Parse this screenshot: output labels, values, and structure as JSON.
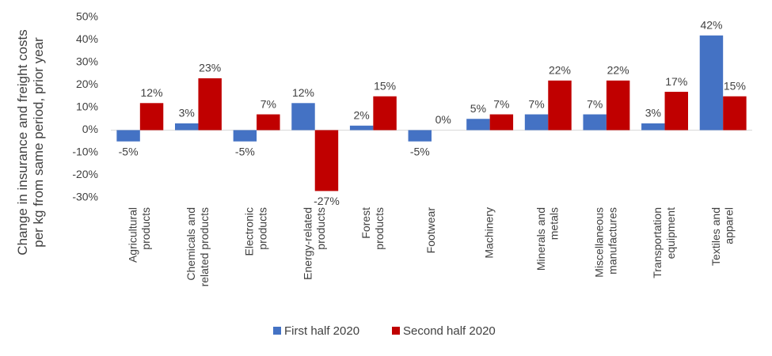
{
  "chart_data": {
    "type": "bar",
    "y_label": [
      "Change in insurance and freight costs",
      "per kg from same period, prior year"
    ],
    "categories": [
      [
        "Agricultural",
        "products"
      ],
      [
        "Chemicals and",
        "related products"
      ],
      [
        "Electronic",
        "products"
      ],
      [
        "Energy-related",
        "products"
      ],
      [
        "Forest",
        "products"
      ],
      [
        "Footwear"
      ],
      [
        "Machinery"
      ],
      [
        "Minerals and",
        "metals"
      ],
      [
        "Miscellaneous",
        "manufactures"
      ],
      [
        "Transportation",
        "equipment"
      ],
      [
        "Textiles and",
        "apparel"
      ]
    ],
    "series": [
      {
        "name": "First half 2020",
        "color": "#4472c4",
        "values": [
          -5,
          3,
          -5,
          12,
          2,
          -5,
          5,
          7,
          7,
          3,
          42
        ],
        "value_labels": [
          "-5%",
          "3%",
          "-5%",
          "12%",
          "2%",
          "-5%",
          "5%",
          "7%",
          "7%",
          "3%",
          "42%"
        ]
      },
      {
        "name": "Second half 2020",
        "color": "#c00000",
        "values": [
          12,
          23,
          7,
          -27,
          15,
          0,
          7,
          22,
          22,
          17,
          15
        ],
        "value_labels": [
          "12%",
          "23%",
          "7%",
          "-27%",
          "15%",
          "0%",
          "7%",
          "22%",
          "22%",
          "17%",
          "15%"
        ]
      }
    ],
    "ylim": [
      -30,
      50
    ],
    "yticks": [
      {
        "value": -30,
        "label": "-30%"
      },
      {
        "value": -20,
        "label": "-20%"
      },
      {
        "value": -10,
        "label": "-10%"
      },
      {
        "value": 0,
        "label": "0%"
      },
      {
        "value": 10,
        "label": "10%"
      },
      {
        "value": 20,
        "label": "20%"
      },
      {
        "value": 30,
        "label": "30%"
      },
      {
        "value": 40,
        "label": "40%"
      },
      {
        "value": 50,
        "label": "50%"
      }
    ],
    "legend": "bottom"
  }
}
